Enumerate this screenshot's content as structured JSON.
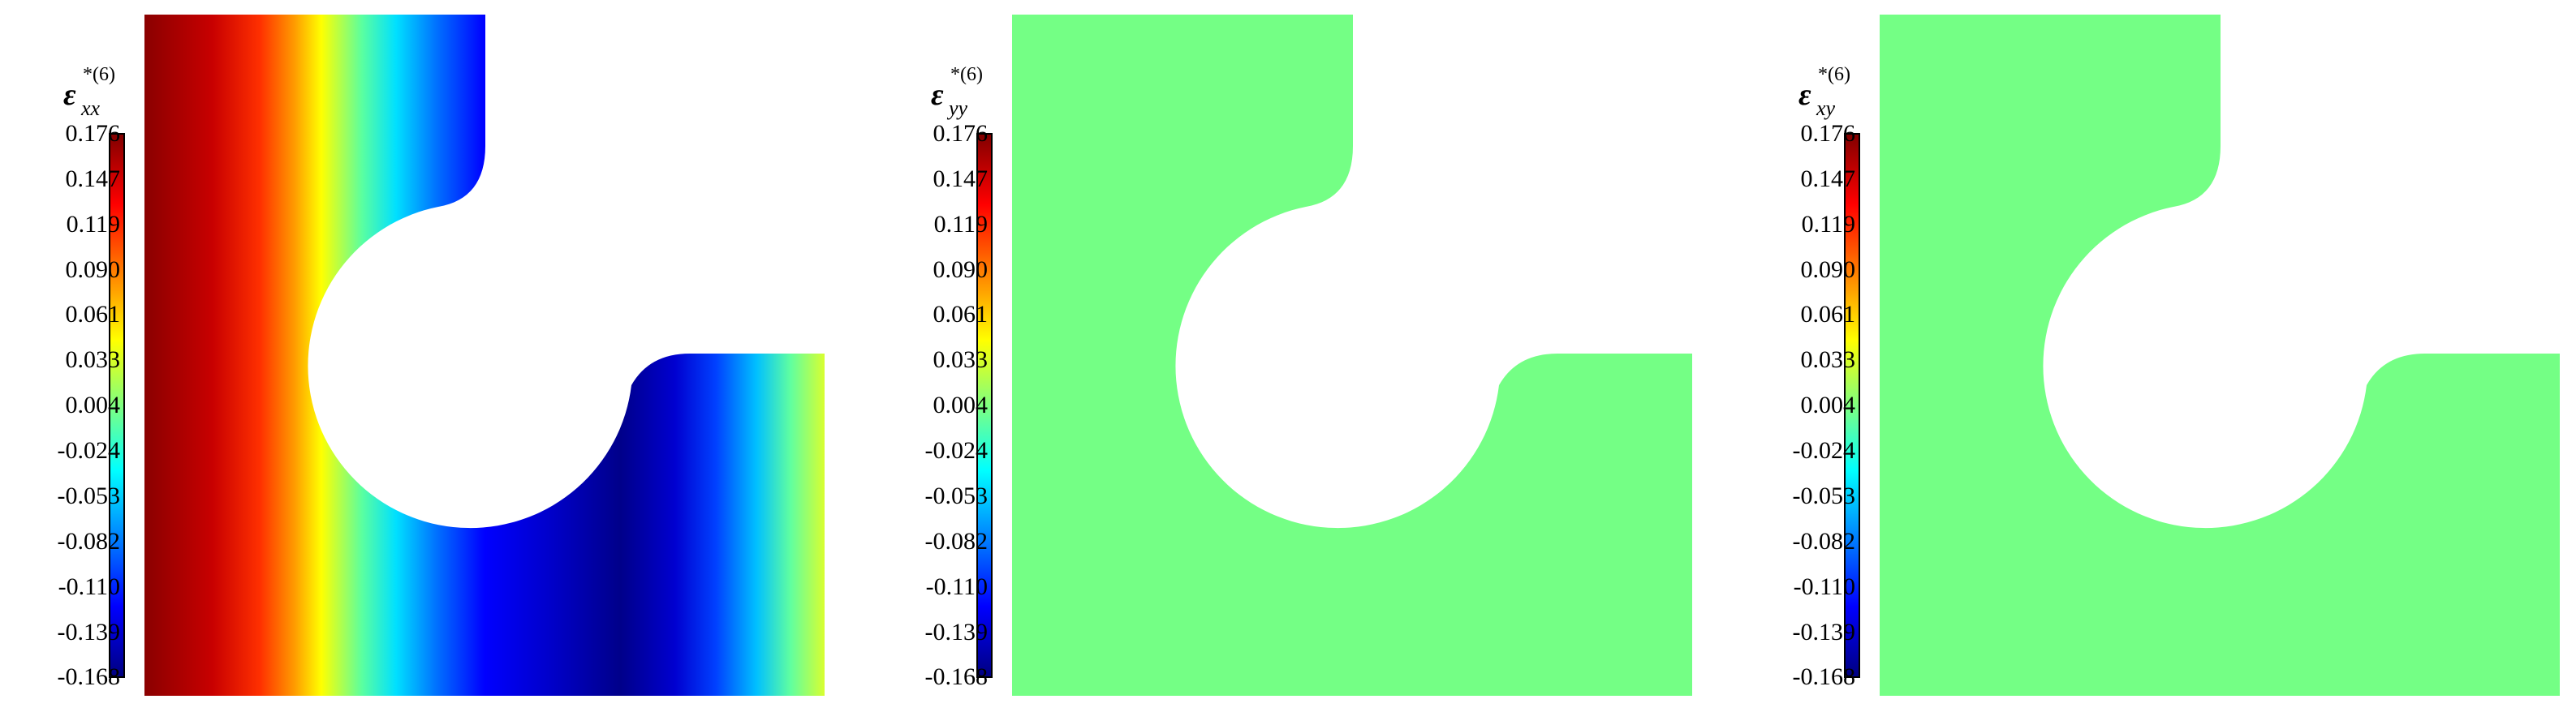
{
  "colorbar": {
    "ticks": [
      "0.176",
      "0.147",
      "0.119",
      "0.090",
      "0.061",
      "0.033",
      "0.004",
      "-0.024",
      "-0.053",
      "-0.082",
      "-0.110",
      "-0.139",
      "-0.168"
    ],
    "colormap": [
      "#000080",
      "#0000ff",
      "#00ffff",
      "#ffff00",
      "#ff0000",
      "#800000"
    ],
    "range": [
      -0.168,
      0.176
    ]
  },
  "panels": [
    {
      "symbol": "ε",
      "subscript": "xx",
      "superscript": "*(6)",
      "field": "gradient",
      "fill_color": "#74ff85"
    },
    {
      "symbol": "ε",
      "subscript": "yy",
      "superscript": "*(6)",
      "field": "uniform",
      "fill_color": "#74ff85"
    },
    {
      "symbol": "ε",
      "subscript": "xy",
      "superscript": "*(6)",
      "field": "uniform",
      "fill_color": "#74ff85"
    }
  ]
}
